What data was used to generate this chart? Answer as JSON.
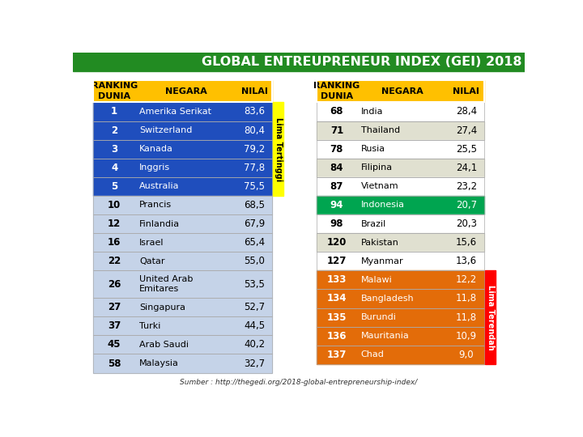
{
  "title": "GLOBAL ENTREUPRENEUR INDEX (GEI) 2018",
  "title_color": "#FFFFFF",
  "title_bg": "#228B22",
  "source": "Sumber : http://thegedi.org/2018-global-entrepreneurship-index/",
  "bg_color": "#FFFFFF",
  "left_table": {
    "headers": [
      "RANKING\nDUNIA",
      "NEGARA",
      "NILAI"
    ],
    "rows": [
      {
        "rank": "1",
        "negara": "Amerika Serikat",
        "nilai": "83,6",
        "highlight": "blue_top"
      },
      {
        "rank": "2",
        "negara": "Switzerland",
        "nilai": "80,4",
        "highlight": "blue_top"
      },
      {
        "rank": "3",
        "negara": "Kanada",
        "nilai": "79,2",
        "highlight": "blue_top"
      },
      {
        "rank": "4",
        "negara": "Inggris",
        "nilai": "77,8",
        "highlight": "blue_top"
      },
      {
        "rank": "5",
        "negara": "Australia",
        "nilai": "75,5",
        "highlight": "blue_top"
      },
      {
        "rank": "10",
        "negara": "Prancis",
        "nilai": "68,5",
        "highlight": "light"
      },
      {
        "rank": "12",
        "negara": "Finlandia",
        "nilai": "67,9",
        "highlight": "light"
      },
      {
        "rank": "16",
        "negara": "Israel",
        "nilai": "65,4",
        "highlight": "light"
      },
      {
        "rank": "22",
        "negara": "Qatar",
        "nilai": "55,0",
        "highlight": "light"
      },
      {
        "rank": "26",
        "negara": "United Arab\nEmitares",
        "nilai": "53,5",
        "highlight": "light",
        "tall": true
      },
      {
        "rank": "27",
        "negara": "Singapura",
        "nilai": "52,7",
        "highlight": "light"
      },
      {
        "rank": "37",
        "negara": "Turki",
        "nilai": "44,5",
        "highlight": "light"
      },
      {
        "rank": "45",
        "negara": "Arab Saudi",
        "nilai": "40,2",
        "highlight": "light"
      },
      {
        "rank": "58",
        "negara": "Malaysia",
        "nilai": "32,7",
        "highlight": "light"
      }
    ]
  },
  "right_table": {
    "headers": [
      "RANKING\nDUNIA",
      "NEGARA",
      "NILAI"
    ],
    "rows": [
      {
        "rank": "68",
        "negara": "India",
        "nilai": "28,4",
        "highlight": "white"
      },
      {
        "rank": "71",
        "negara": "Thailand",
        "nilai": "27,4",
        "highlight": "light2"
      },
      {
        "rank": "78",
        "negara": "Rusia",
        "nilai": "25,5",
        "highlight": "white"
      },
      {
        "rank": "84",
        "negara": "Filipina",
        "nilai": "24,1",
        "highlight": "light2"
      },
      {
        "rank": "87",
        "negara": "Vietnam",
        "nilai": "23,2",
        "highlight": "white"
      },
      {
        "rank": "94",
        "negara": "Indonesia",
        "nilai": "20,7",
        "highlight": "green"
      },
      {
        "rank": "98",
        "negara": "Brazil",
        "nilai": "20,3",
        "highlight": "white"
      },
      {
        "rank": "120",
        "negara": "Pakistan",
        "nilai": "15,6",
        "highlight": "light2"
      },
      {
        "rank": "127",
        "negara": "Myanmar",
        "nilai": "13,6",
        "highlight": "white"
      },
      {
        "rank": "133",
        "negara": "Malawi",
        "nilai": "12,2",
        "highlight": "orange"
      },
      {
        "rank": "134",
        "negara": "Bangladesh",
        "nilai": "11,8",
        "highlight": "orange"
      },
      {
        "rank": "135",
        "negara": "Burundi",
        "nilai": "11,8",
        "highlight": "orange"
      },
      {
        "rank": "136",
        "negara": "Mauritania",
        "nilai": "10,9",
        "highlight": "orange"
      },
      {
        "rank": "137",
        "negara": "Chad",
        "nilai": "9,0",
        "highlight": "orange"
      }
    ]
  },
  "colors": {
    "blue_top": "#1F4EBD",
    "blue_text": "#FFFFFF",
    "green": "#00A550",
    "green_text": "#FFFFFF",
    "orange": "#E36C09",
    "orange_text": "#FFFFFF",
    "white": "#FFFFFF",
    "white_text": "#000000",
    "light": "#C5D3E8",
    "light_text": "#000000",
    "light2": "#E0E0D0",
    "light2_text": "#000000",
    "header_bg": "#FFC000",
    "header_text": "#000000"
  },
  "lima_tertinggi_color": "#FFFF00",
  "lima_tertinggi_text": "#000000",
  "lima_terendah_color": "#FF0000",
  "lima_terendah_text": "#FFFFFF"
}
